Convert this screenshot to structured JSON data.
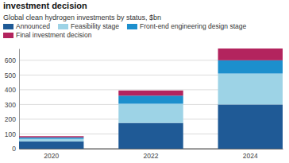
{
  "chart_data": {
    "type": "bar",
    "title": "investment decision",
    "subtitle": "Global clean hydrogen investments by status, $bn",
    "categories": [
      "2020",
      "2022",
      "2024"
    ],
    "series": [
      {
        "name": "Announced",
        "color": "#1f5a96",
        "values": [
          50,
          175,
          300
        ]
      },
      {
        "name": "Feasibility stage",
        "color": "#9dd3e6",
        "values": [
          17,
          130,
          210
        ]
      },
      {
        "name": "Front-end engineering design stage",
        "color": "#1c8fcd",
        "values": [
          10,
          55,
          90
        ]
      },
      {
        "name": "Final investment decision",
        "color": "#b3245e",
        "values": [
          8,
          35,
          80
        ]
      }
    ],
    "ylim": [
      0,
      680
    ],
    "yticks": [
      0,
      100,
      200,
      300,
      400,
      500,
      600
    ],
    "stacked": true,
    "grid": true,
    "legend": "top-left"
  }
}
